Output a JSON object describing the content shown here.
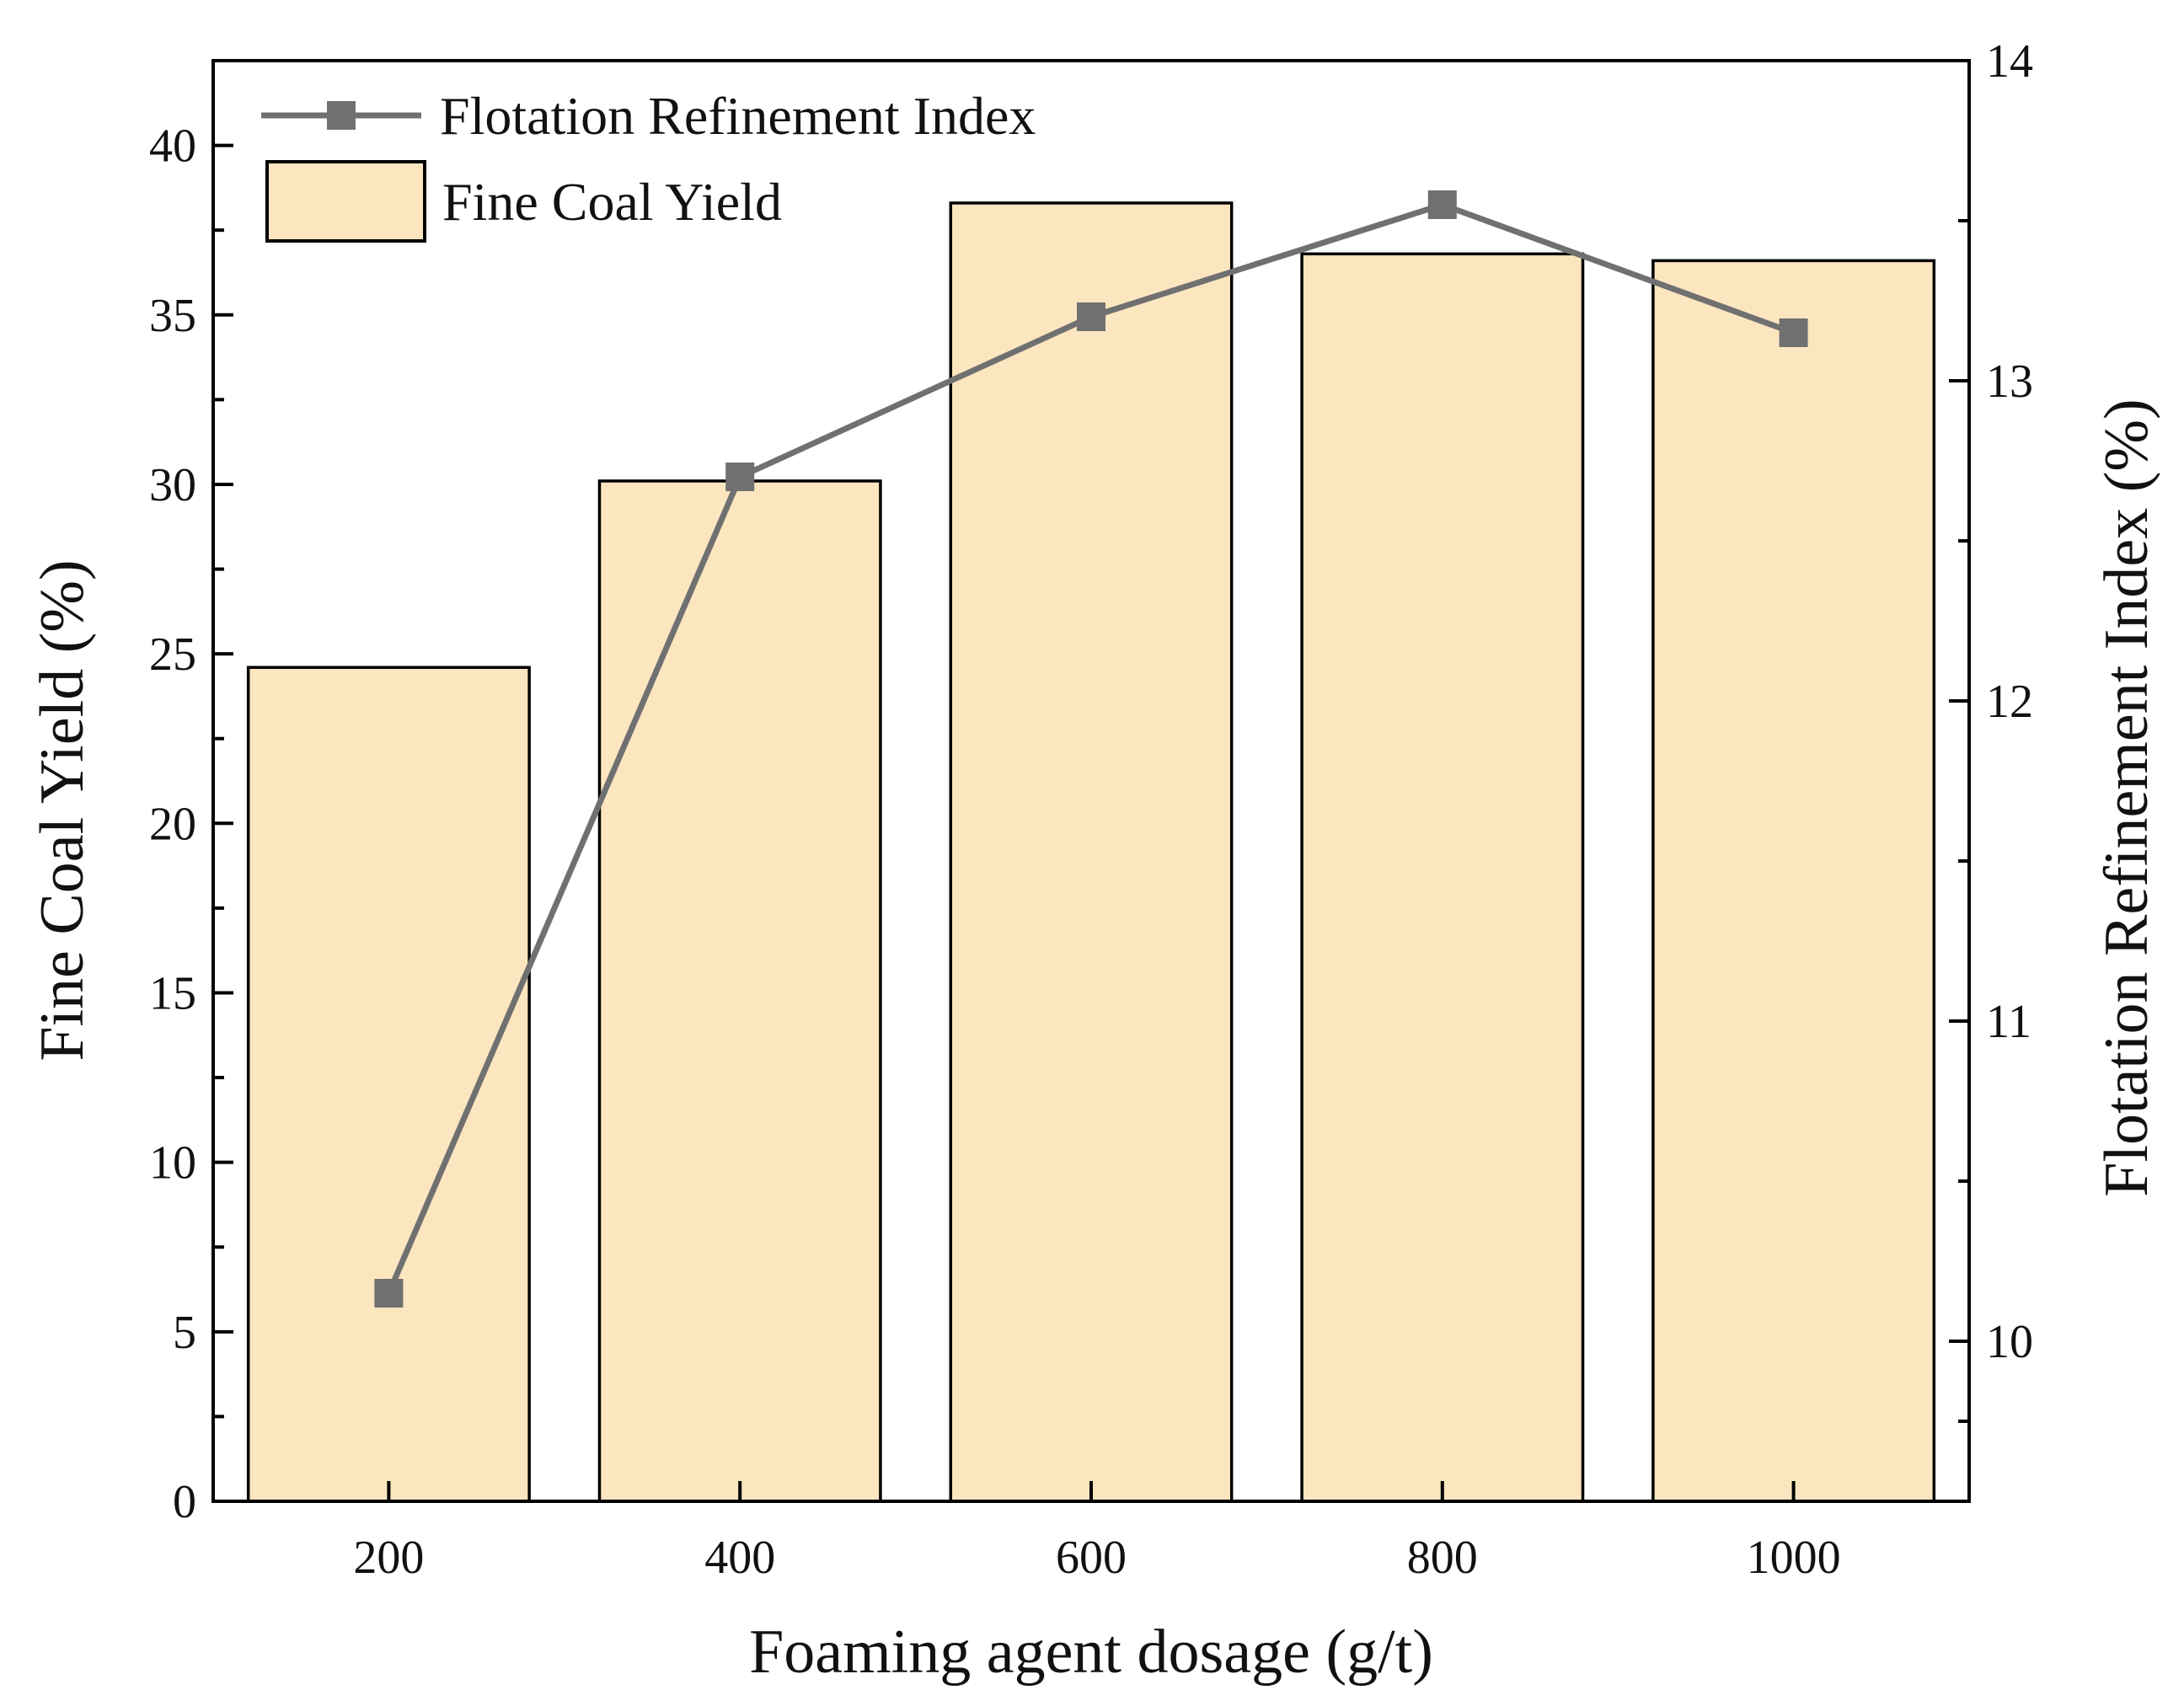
{
  "chart_data": {
    "type": "bar+line",
    "categories": [
      "200",
      "400",
      "600",
      "800",
      "1000"
    ],
    "series": [
      {
        "name": "Fine Coal Yield",
        "type": "bar",
        "axis": "left",
        "values": [
          24.6,
          30.1,
          38.3,
          36.8,
          36.6
        ],
        "color": "#FCE6C0"
      },
      {
        "name": "Flotation Refinement Index",
        "type": "line",
        "axis": "right",
        "values": [
          10.15,
          12.7,
          13.2,
          13.55,
          13.15
        ],
        "color": "#707070"
      }
    ],
    "xlabel": "Foaming agent dosage (g/t)",
    "ylabel": "Fine Coal Yield (%)",
    "y2label": "Flotation Refinement Index (%)",
    "ylim": [
      0,
      42.5
    ],
    "y2lim": [
      9.5,
      14
    ],
    "yticks": [
      "0",
      "5",
      "10",
      "15",
      "20",
      "25",
      "30",
      "35",
      "40"
    ],
    "y2ticks": [
      "10",
      "11",
      "12",
      "13",
      "14"
    ],
    "legend": {
      "position": "top-left",
      "entries": [
        "Flotation Refinement Index",
        "Fine Coal Yield"
      ]
    }
  }
}
